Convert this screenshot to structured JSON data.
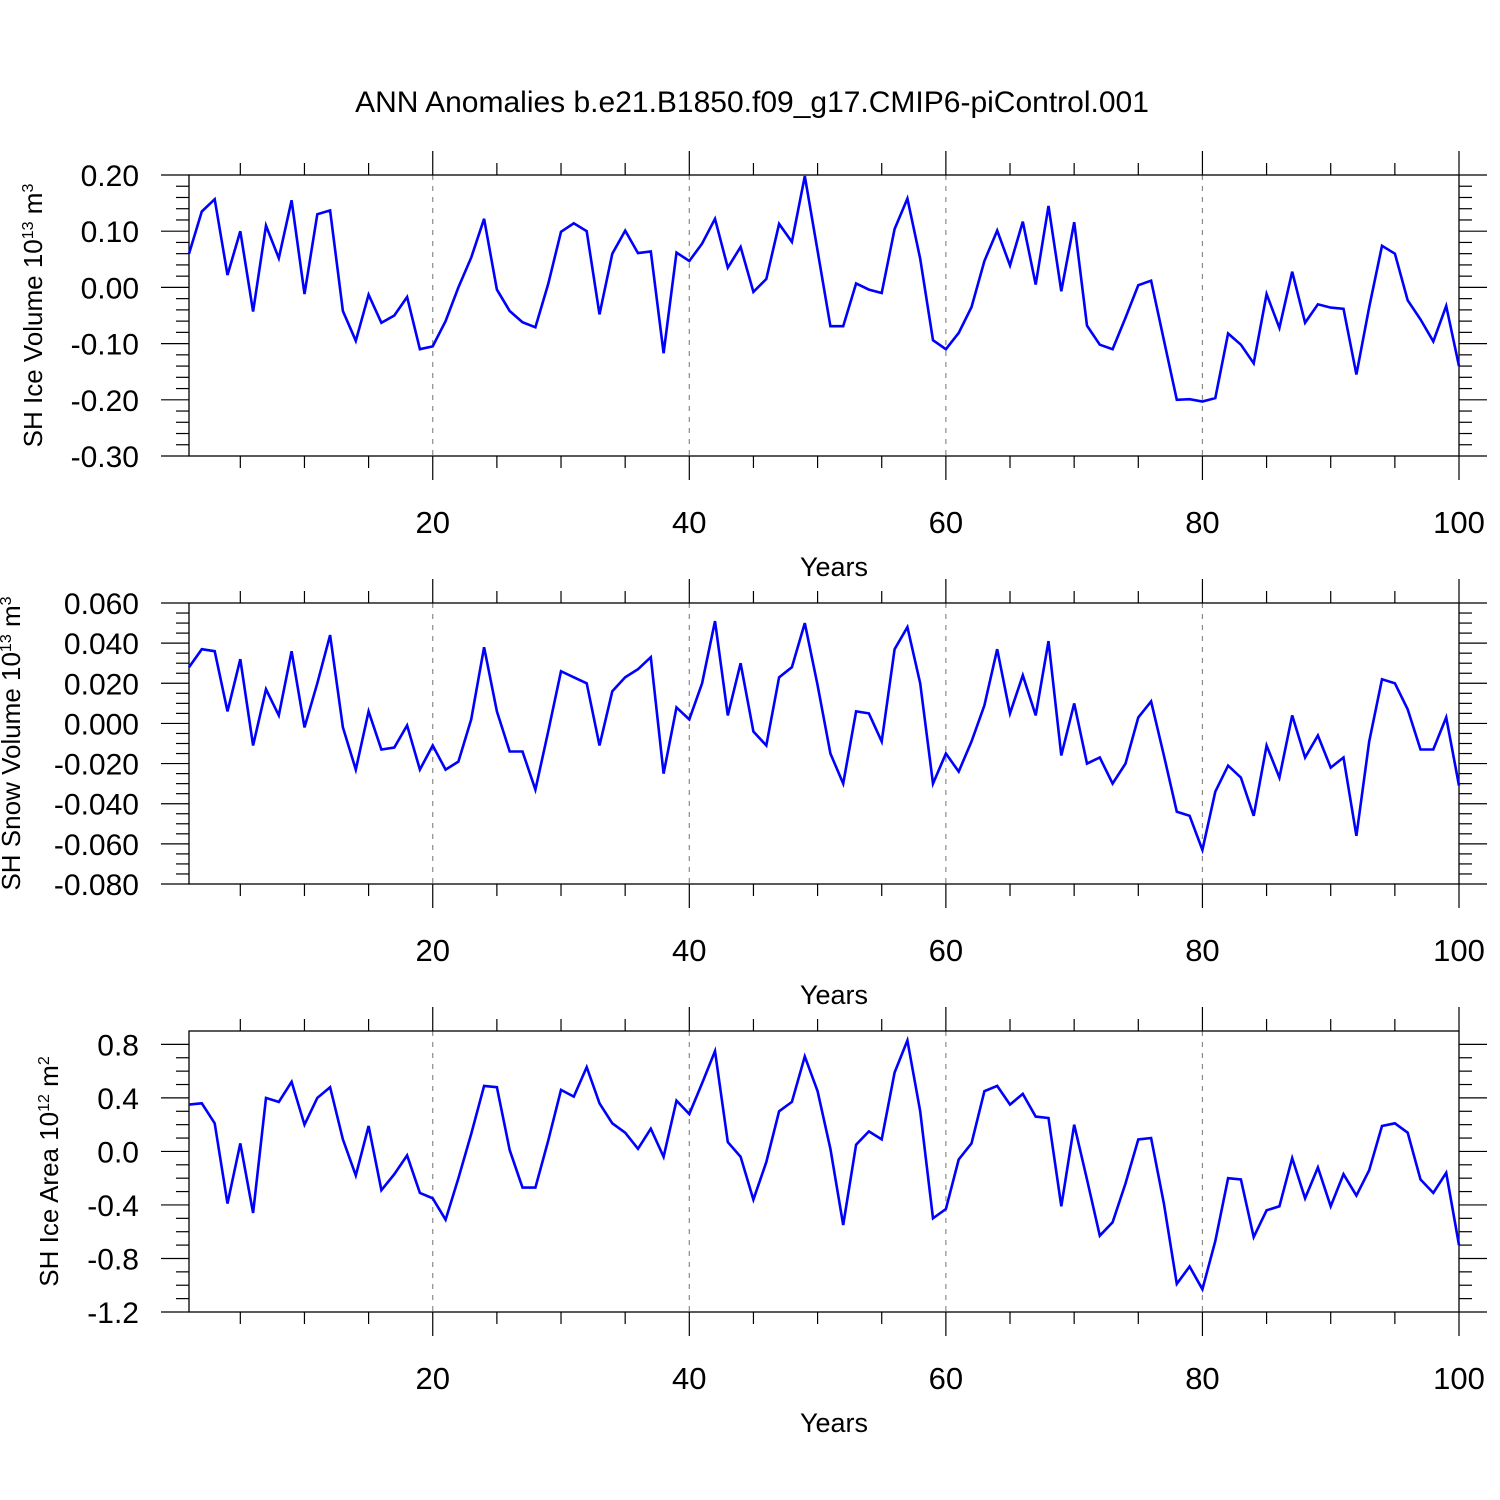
{
  "title": "ANN Anomalies b.e21.B1850.f09_g17.CMIP6-piControl.001",
  "colors": {
    "line": "#0000ff",
    "grid": "#8a8a8a"
  },
  "chart_data": [
    {
      "type": "line",
      "ylabel": {
        "base": "SH Ice Volume 10",
        "exp": "13",
        "unit": " m",
        "unit_exp": "3"
      },
      "xlabel": "Years",
      "xlim": [
        1,
        100
      ],
      "ylim": [
        -0.3,
        0.2
      ],
      "grid": "dashed vertical lines at 20, 40, 60, 80",
      "xticks": [
        "20",
        "40",
        "60",
        "80",
        "100"
      ],
      "yticks": [
        "0.20",
        "0.10",
        "0.00",
        "-0.10",
        "-0.20",
        "-0.30"
      ],
      "x": [
        1,
        2,
        3,
        4,
        5,
        6,
        7,
        8,
        9,
        10,
        11,
        12,
        13,
        14,
        15,
        16,
        17,
        18,
        19,
        20,
        21,
        22,
        23,
        24,
        25,
        26,
        27,
        28,
        29,
        30,
        31,
        32,
        33,
        34,
        35,
        36,
        37,
        38,
        39,
        40,
        41,
        42,
        43,
        44,
        45,
        46,
        47,
        48,
        49,
        50,
        51,
        52,
        53,
        54,
        55,
        56,
        57,
        58,
        59,
        60,
        61,
        62,
        63,
        64,
        65,
        66,
        67,
        68,
        69,
        70,
        71,
        72,
        73,
        74,
        75,
        76,
        77,
        78,
        79,
        80,
        81,
        82,
        83,
        84,
        85,
        86,
        87,
        88,
        89,
        90,
        91,
        92,
        93,
        94,
        95,
        96,
        97,
        98,
        99,
        100
      ],
      "series": [
        {
          "values": [
            0.06,
            0.135,
            0.157,
            0.022,
            0.1,
            -0.043,
            0.11,
            0.052,
            0.155,
            -0.012,
            0.13,
            0.137,
            -0.042,
            -0.095,
            -0.013,
            -0.063,
            -0.05,
            -0.017,
            -0.11,
            -0.105,
            -0.06,
            0.0,
            0.053,
            0.122,
            -0.004,
            -0.042,
            -0.062,
            -0.071,
            0.006,
            0.099,
            0.114,
            0.1,
            -0.048,
            0.06,
            0.101,
            0.061,
            0.064,
            -0.117,
            0.062,
            0.047,
            0.078,
            0.122,
            0.035,
            0.072,
            -0.008,
            0.015,
            0.113,
            0.081,
            0.198,
            0.065,
            -0.069,
            -0.069,
            0.007,
            -0.004,
            -0.01,
            0.104,
            0.158,
            0.051,
            -0.094,
            -0.11,
            -0.081,
            -0.035,
            0.047,
            0.101,
            0.039,
            0.117,
            0.005,
            0.145,
            -0.007,
            0.116,
            -0.068,
            -0.102,
            -0.11,
            -0.054,
            0.004,
            0.012,
            -0.094,
            -0.2,
            -0.199,
            -0.203,
            -0.197,
            -0.082,
            -0.102,
            -0.135,
            -0.012,
            -0.072,
            0.028,
            -0.063,
            -0.03,
            -0.036,
            -0.038,
            -0.155,
            -0.035,
            0.074,
            0.06,
            -0.023,
            -0.057,
            -0.096,
            -0.033,
            -0.14
          ]
        }
      ]
    },
    {
      "type": "line",
      "ylabel": {
        "base": "SH Snow Volume 10",
        "exp": "13",
        "unit": " m",
        "unit_exp": "3"
      },
      "xlabel": "Years",
      "xlim": [
        1,
        100
      ],
      "ylim": [
        -0.08,
        0.06
      ],
      "grid": "dashed vertical lines at 20, 40, 60, 80",
      "xticks": [
        "20",
        "40",
        "60",
        "80",
        "100"
      ],
      "yticks": [
        "0.060",
        "0.040",
        "0.020",
        "0.000",
        "-0.020",
        "-0.040",
        "-0.060",
        "-0.080"
      ],
      "x": [
        1,
        2,
        3,
        4,
        5,
        6,
        7,
        8,
        9,
        10,
        11,
        12,
        13,
        14,
        15,
        16,
        17,
        18,
        19,
        20,
        21,
        22,
        23,
        24,
        25,
        26,
        27,
        28,
        29,
        30,
        31,
        32,
        33,
        34,
        35,
        36,
        37,
        38,
        39,
        40,
        41,
        42,
        43,
        44,
        45,
        46,
        47,
        48,
        49,
        50,
        51,
        52,
        53,
        54,
        55,
        56,
        57,
        58,
        59,
        60,
        61,
        62,
        63,
        64,
        65,
        66,
        67,
        68,
        69,
        70,
        71,
        72,
        73,
        74,
        75,
        76,
        77,
        78,
        79,
        80,
        81,
        82,
        83,
        84,
        85,
        86,
        87,
        88,
        89,
        90,
        91,
        92,
        93,
        94,
        95,
        96,
        97,
        98,
        99,
        100
      ],
      "series": [
        {
          "values": [
            0.028,
            0.037,
            0.036,
            0.006,
            0.032,
            -0.011,
            0.017,
            0.004,
            0.036,
            -0.002,
            0.02,
            0.044,
            -0.002,
            -0.023,
            0.006,
            -0.013,
            -0.012,
            -0.001,
            -0.023,
            -0.011,
            -0.023,
            -0.019,
            0.002,
            0.038,
            0.006,
            -0.014,
            -0.014,
            -0.033,
            -0.004,
            0.026,
            0.023,
            0.02,
            -0.011,
            0.016,
            0.023,
            0.027,
            0.033,
            -0.025,
            0.008,
            0.002,
            0.02,
            0.051,
            0.004,
            0.03,
            -0.004,
            -0.011,
            0.023,
            0.028,
            0.05,
            0.019,
            -0.015,
            -0.03,
            0.006,
            0.005,
            -0.009,
            0.037,
            0.048,
            0.02,
            -0.03,
            -0.015,
            -0.024,
            -0.009,
            0.009,
            0.037,
            0.005,
            0.024,
            0.004,
            0.041,
            -0.016,
            0.01,
            -0.02,
            -0.017,
            -0.03,
            -0.02,
            0.003,
            0.011,
            -0.016,
            -0.044,
            -0.046,
            -0.063,
            -0.034,
            -0.021,
            -0.027,
            -0.046,
            -0.011,
            -0.027,
            0.004,
            -0.017,
            -0.006,
            -0.022,
            -0.017,
            -0.056,
            -0.009,
            0.022,
            0.02,
            0.007,
            -0.013,
            -0.013,
            0.003,
            -0.031
          ]
        }
      ]
    },
    {
      "type": "line",
      "ylabel": {
        "base": "SH Ice Area 10",
        "exp": "12",
        "unit": " m",
        "unit_exp": "2"
      },
      "xlabel": "Years",
      "xlim": [
        1,
        100
      ],
      "ylim": [
        -1.2,
        0.9
      ],
      "grid": "dashed vertical lines at 20, 40, 60, 80",
      "xticks": [
        "20",
        "40",
        "60",
        "80",
        "100"
      ],
      "yticks": [
        "0.8",
        "0.4",
        "0.0",
        "-0.4",
        "-0.8",
        "-1.2"
      ],
      "x": [
        1,
        2,
        3,
        4,
        5,
        6,
        7,
        8,
        9,
        10,
        11,
        12,
        13,
        14,
        15,
        16,
        17,
        18,
        19,
        20,
        21,
        22,
        23,
        24,
        25,
        26,
        27,
        28,
        29,
        30,
        31,
        32,
        33,
        34,
        35,
        36,
        37,
        38,
        39,
        40,
        41,
        42,
        43,
        44,
        45,
        46,
        47,
        48,
        49,
        50,
        51,
        52,
        53,
        54,
        55,
        56,
        57,
        58,
        59,
        60,
        61,
        62,
        63,
        64,
        65,
        66,
        67,
        68,
        69,
        70,
        71,
        72,
        73,
        74,
        75,
        76,
        77,
        78,
        79,
        80,
        81,
        82,
        83,
        84,
        85,
        86,
        87,
        88,
        89,
        90,
        91,
        92,
        93,
        94,
        95,
        96,
        97,
        98,
        99,
        100
      ],
      "series": [
        {
          "values": [
            0.35,
            0.36,
            0.21,
            -0.39,
            0.06,
            -0.46,
            0.4,
            0.37,
            0.52,
            0.2,
            0.4,
            0.48,
            0.09,
            -0.18,
            0.19,
            -0.29,
            -0.17,
            -0.03,
            -0.31,
            -0.35,
            -0.51,
            -0.2,
            0.13,
            0.49,
            0.48,
            0.01,
            -0.27,
            -0.27,
            0.08,
            0.46,
            0.41,
            0.63,
            0.36,
            0.21,
            0.14,
            0.02,
            0.17,
            -0.04,
            0.38,
            0.28,
            0.51,
            0.75,
            0.07,
            -0.04,
            -0.36,
            -0.08,
            0.3,
            0.37,
            0.71,
            0.45,
            0.02,
            -0.55,
            0.05,
            0.15,
            0.09,
            0.59,
            0.83,
            0.3,
            -0.5,
            -0.43,
            -0.06,
            0.06,
            0.45,
            0.49,
            0.35,
            0.43,
            0.26,
            0.25,
            -0.41,
            0.2,
            -0.21,
            -0.63,
            -0.53,
            -0.24,
            0.09,
            0.1,
            -0.39,
            -0.99,
            -0.86,
            -1.03,
            -0.67,
            -0.2,
            -0.21,
            -0.64,
            -0.44,
            -0.41,
            -0.05,
            -0.35,
            -0.12,
            -0.41,
            -0.17,
            -0.33,
            -0.14,
            0.19,
            0.21,
            0.14,
            -0.21,
            -0.31,
            -0.16,
            -0.7
          ]
        }
      ]
    }
  ]
}
